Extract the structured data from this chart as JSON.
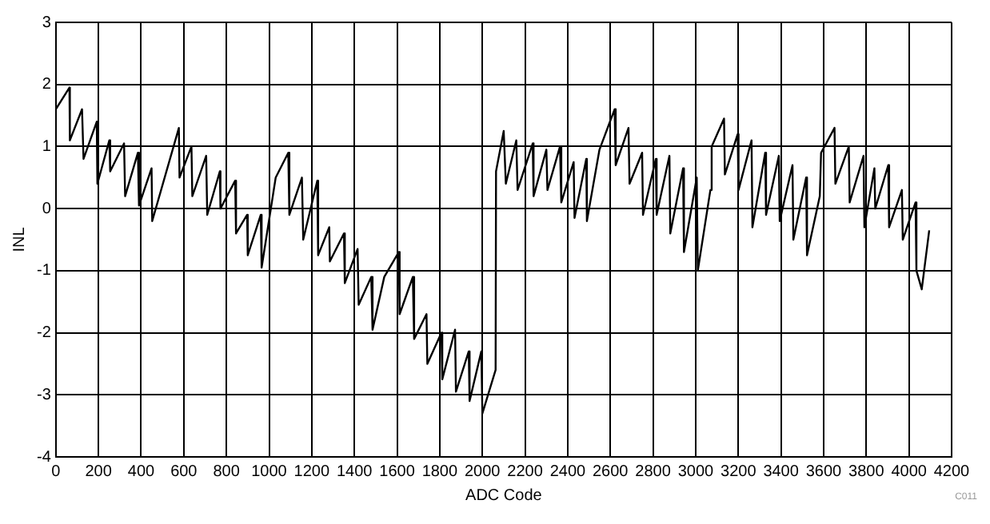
{
  "chart_data": {
    "type": "line",
    "xlabel": "ADC Code",
    "ylabel": "INL",
    "annotations": [
      "C011"
    ],
    "xlim": [
      0,
      4200
    ],
    "xticks": [
      0,
      200,
      400,
      600,
      800,
      1000,
      1200,
      1400,
      1600,
      1800,
      2000,
      2200,
      2400,
      2600,
      2800,
      3000,
      3200,
      3400,
      3600,
      3800,
      4000,
      4200
    ],
    "ylim": [
      -4,
      3
    ],
    "yticks": [
      -4,
      -3,
      -2,
      -1,
      0,
      1,
      2,
      3
    ],
    "grid": true,
    "legend": false,
    "marker": "none",
    "line_style": "solid",
    "series": [
      {
        "color": "#000000",
        "x": [
          0,
          64,
          66,
          123,
          130,
          192,
          195,
          251,
          255,
          320,
          325,
          385,
          390,
          449,
          452,
          577,
          580,
          636,
          640,
          705,
          710,
          769,
          772,
          841,
          845,
          897,
          900,
          961,
          965,
          1031,
          1090,
          1095,
          1154,
          1160,
          1226,
          1230,
          1282,
          1285,
          1351,
          1355,
          1415,
          1420,
          1479,
          1485,
          1540,
          1608,
          1612,
          1674,
          1680,
          1738,
          1742,
          1808,
          1812,
          1872,
          1876,
          1936,
          1940,
          1995,
          2000,
          2062,
          2064,
          2100,
          2110,
          2159,
          2165,
          2236,
          2240,
          2300,
          2305,
          2364,
          2370,
          2428,
          2432,
          2487,
          2490,
          2549,
          2620,
          2625,
          2685,
          2690,
          2749,
          2753,
          2813,
          2817,
          2877,
          2881,
          2941,
          2945,
          3005,
          3010,
          3069,
          3075,
          3133,
          3137,
          3197,
          3201,
          3262,
          3266,
          3326,
          3330,
          3390,
          3394,
          3454,
          3458,
          3518,
          3522,
          3582,
          3588,
          3651,
          3655,
          3718,
          3722,
          3787,
          3791,
          3838,
          3842,
          3903,
          3907,
          3967,
          3971,
          4031,
          4035,
          4060,
          4095
        ],
        "values": [
          1.6,
          1.95,
          1.1,
          1.6,
          0.8,
          1.4,
          0.4,
          1.1,
          0.6,
          1.05,
          0.2,
          0.9,
          0.05,
          0.65,
          -0.2,
          1.3,
          0.5,
          1.0,
          0.2,
          0.85,
          -0.1,
          0.6,
          0.0,
          0.45,
          -0.4,
          -0.1,
          -0.75,
          -0.1,
          -0.95,
          0.5,
          0.9,
          -0.1,
          0.5,
          -0.5,
          0.45,
          -0.75,
          -0.3,
          -0.85,
          -0.4,
          -1.2,
          -0.65,
          -1.55,
          -1.1,
          -1.95,
          -1.1,
          -0.7,
          -1.7,
          -1.1,
          -2.1,
          -1.7,
          -2.5,
          -2.0,
          -2.75,
          -1.95,
          -2.95,
          -2.3,
          -3.1,
          -2.3,
          -3.3,
          -2.6,
          0.6,
          1.25,
          0.4,
          1.1,
          0.3,
          1.05,
          0.2,
          0.95,
          0.3,
          1.0,
          0.1,
          0.75,
          -0.15,
          0.8,
          -0.2,
          0.95,
          1.6,
          0.7,
          1.3,
          0.4,
          0.9,
          -0.1,
          0.8,
          -0.1,
          0.85,
          -0.4,
          0.65,
          -0.7,
          0.5,
          -1.0,
          0.3,
          1.0,
          1.45,
          0.55,
          1.2,
          0.3,
          1.1,
          -0.3,
          0.9,
          -0.1,
          0.85,
          -0.2,
          0.7,
          -0.5,
          0.5,
          -0.75,
          0.2,
          0.9,
          1.3,
          0.4,
          1.0,
          0.1,
          0.85,
          -0.3,
          0.65,
          0.0,
          0.7,
          -0.3,
          0.3,
          -0.5,
          0.1,
          -1.0,
          -1.3,
          -0.35
        ]
      }
    ]
  }
}
